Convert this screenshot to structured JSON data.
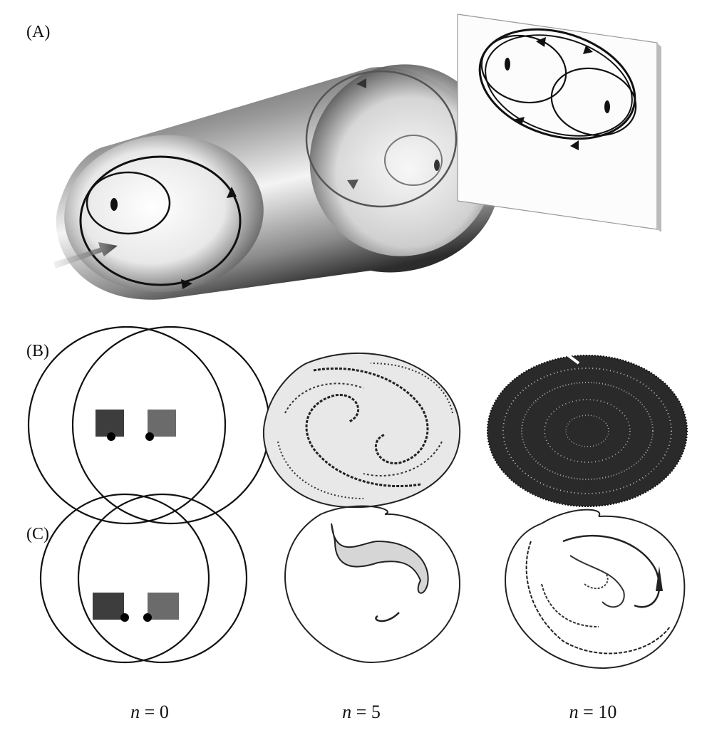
{
  "panels": {
    "a": "(A)",
    "b": "(B)",
    "c": "(C)"
  },
  "iterations": [
    {
      "var": "n",
      "eq": " = ",
      "value": "0"
    },
    {
      "var": "n",
      "eq": " = ",
      "value": "5"
    },
    {
      "var": "n",
      "eq": " = ",
      "value": "10"
    }
  ],
  "colors": {
    "square_dark": "#3d3d3d",
    "square_light": "#6b6b6b",
    "ink": "#111111"
  }
}
